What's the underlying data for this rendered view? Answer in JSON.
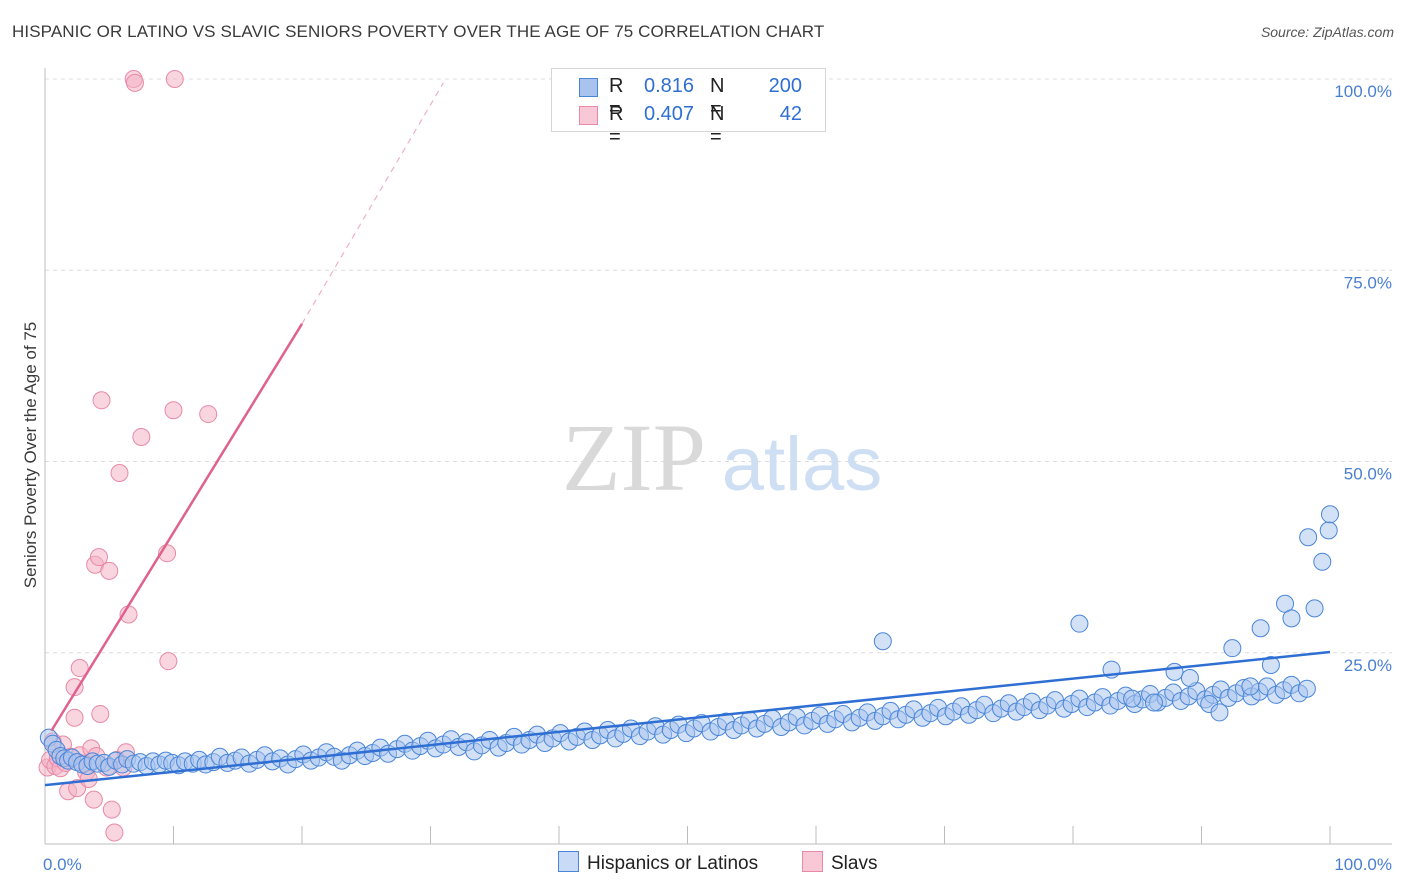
{
  "title": "HISPANIC OR LATINO VS SLAVIC SENIORS POVERTY OVER THE AGE OF 75 CORRELATION CHART",
  "source": "Source: ZipAtlas.com",
  "watermark": {
    "zip": "ZIP",
    "atlas": "atlas"
  },
  "colors": {
    "blue_fill": "#a8c4ee",
    "blue_stroke": "#4a86d8",
    "blue_line": "#2f6fd3",
    "pink_fill": "#f4b3c6",
    "pink_stroke": "#e88aa7",
    "pink_line": "#e0608e",
    "tick_text": "#4a7fd0",
    "grid": "#dcdcdc"
  },
  "legend": {
    "r_label": "R =",
    "n_label": "N =",
    "rows": [
      {
        "series": "Hispanics or Latinos",
        "r": "0.816",
        "n": "200"
      },
      {
        "series": "Slavs",
        "r": "0.407",
        "n": "42"
      }
    ]
  },
  "chart_data": {
    "type": "scatter",
    "title": "HISPANIC OR LATINO VS SLAVIC SENIORS POVERTY OVER THE AGE OF 75 CORRELATION CHART",
    "xlabel": "",
    "ylabel": "Seniors Poverty Over the Age of 75",
    "xlim": [
      0,
      100
    ],
    "ylim": [
      0,
      100
    ],
    "x_tick_labels": [
      "0.0%",
      "100.0%"
    ],
    "y_tick_labels": [
      "25.0%",
      "50.0%",
      "75.0%",
      "100.0%"
    ],
    "y_ticks": [
      25,
      50,
      75,
      100
    ],
    "grid": "horizontal dashed",
    "legend_position": "top-center and bottom",
    "series": [
      {
        "name": "Hispanics or Latinos",
        "trend": {
          "x": [
            0,
            100
          ],
          "y": [
            7.7,
            25.1
          ]
        },
        "points": [
          [
            0.3,
            13.9
          ],
          [
            0.6,
            13.1
          ],
          [
            0.9,
            12.3
          ],
          [
            1.2,
            11.5
          ],
          [
            1.5,
            11.2
          ],
          [
            1.8,
            10.9
          ],
          [
            2.1,
            11.3
          ],
          [
            2.5,
            10.7
          ],
          [
            2.9,
            10.4
          ],
          [
            3.3,
            10.2
          ],
          [
            3.7,
            10.8
          ],
          [
            4.1,
            10.5
          ],
          [
            4.6,
            10.6
          ],
          [
            5.0,
            10.1
          ],
          [
            5.5,
            10.9
          ],
          [
            6.0,
            10.4
          ],
          [
            6.4,
            11.1
          ],
          [
            6.9,
            10.5
          ],
          [
            7.4,
            10.7
          ],
          [
            7.9,
            10.2
          ],
          [
            8.4,
            10.8
          ],
          [
            8.9,
            10.4
          ],
          [
            9.4,
            10.9
          ],
          [
            9.9,
            10.6
          ],
          [
            10.4,
            10.3
          ],
          [
            10.9,
            10.8
          ],
          [
            11.5,
            10.5
          ],
          [
            12.0,
            11.0
          ],
          [
            12.5,
            10.4
          ],
          [
            13.1,
            10.7
          ],
          [
            13.6,
            11.4
          ],
          [
            14.2,
            10.6
          ],
          [
            14.8,
            10.9
          ],
          [
            15.3,
            11.3
          ],
          [
            15.9,
            10.5
          ],
          [
            16.5,
            11.0
          ],
          [
            17.1,
            11.6
          ],
          [
            17.7,
            10.8
          ],
          [
            18.3,
            11.2
          ],
          [
            18.9,
            10.4
          ],
          [
            19.5,
            11.1
          ],
          [
            20.1,
            11.7
          ],
          [
            20.7,
            10.9
          ],
          [
            21.3,
            11.3
          ],
          [
            21.9,
            12.0
          ],
          [
            22.5,
            11.4
          ],
          [
            23.1,
            10.9
          ],
          [
            23.7,
            11.6
          ],
          [
            24.3,
            12.2
          ],
          [
            24.9,
            11.5
          ],
          [
            25.5,
            11.9
          ],
          [
            26.1,
            12.6
          ],
          [
            26.7,
            11.8
          ],
          [
            27.4,
            12.4
          ],
          [
            28.0,
            13.1
          ],
          [
            28.6,
            12.2
          ],
          [
            29.2,
            12.8
          ],
          [
            29.8,
            13.5
          ],
          [
            30.4,
            12.5
          ],
          [
            31.0,
            13.0
          ],
          [
            31.6,
            13.7
          ],
          [
            32.2,
            12.7
          ],
          [
            32.8,
            13.3
          ],
          [
            33.4,
            12.1
          ],
          [
            34.0,
            12.9
          ],
          [
            34.6,
            13.6
          ],
          [
            35.3,
            12.6
          ],
          [
            35.9,
            13.2
          ],
          [
            36.5,
            14.0
          ],
          [
            37.1,
            13.0
          ],
          [
            37.7,
            13.6
          ],
          [
            38.3,
            14.3
          ],
          [
            38.9,
            13.2
          ],
          [
            39.5,
            13.8
          ],
          [
            40.1,
            14.5
          ],
          [
            40.8,
            13.4
          ],
          [
            41.4,
            14.0
          ],
          [
            42.0,
            14.7
          ],
          [
            42.6,
            13.6
          ],
          [
            43.2,
            14.2
          ],
          [
            43.8,
            14.9
          ],
          [
            44.4,
            13.8
          ],
          [
            45.0,
            14.4
          ],
          [
            45.6,
            15.1
          ],
          [
            46.3,
            14.1
          ],
          [
            46.9,
            14.7
          ],
          [
            47.5,
            15.4
          ],
          [
            48.1,
            14.3
          ],
          [
            48.7,
            14.9
          ],
          [
            49.3,
            15.6
          ],
          [
            49.9,
            14.5
          ],
          [
            50.5,
            15.1
          ],
          [
            51.1,
            15.8
          ],
          [
            51.8,
            14.7
          ],
          [
            52.4,
            15.3
          ],
          [
            53.0,
            16.0
          ],
          [
            53.6,
            14.9
          ],
          [
            54.2,
            15.5
          ],
          [
            54.8,
            16.2
          ],
          [
            55.4,
            15.1
          ],
          [
            56.0,
            15.7
          ],
          [
            56.6,
            16.4
          ],
          [
            57.3,
            15.3
          ],
          [
            57.9,
            15.9
          ],
          [
            58.5,
            16.6
          ],
          [
            59.1,
            15.5
          ],
          [
            59.7,
            16.1
          ],
          [
            60.3,
            16.8
          ],
          [
            60.9,
            15.7
          ],
          [
            61.5,
            16.3
          ],
          [
            62.1,
            17.0
          ],
          [
            62.8,
            15.9
          ],
          [
            63.4,
            16.5
          ],
          [
            64.0,
            17.2
          ],
          [
            64.6,
            16.1
          ],
          [
            65.2,
            16.7
          ],
          [
            65.8,
            17.4
          ],
          [
            66.4,
            16.3
          ],
          [
            67.0,
            16.9
          ],
          [
            67.6,
            17.6
          ],
          [
            68.3,
            16.5
          ],
          [
            68.9,
            17.1
          ],
          [
            69.5,
            17.8
          ],
          [
            70.1,
            16.7
          ],
          [
            70.7,
            17.3
          ],
          [
            71.3,
            18.0
          ],
          [
            71.9,
            16.9
          ],
          [
            72.5,
            17.5
          ],
          [
            73.1,
            18.2
          ],
          [
            73.8,
            17.1
          ],
          [
            74.4,
            17.7
          ],
          [
            75.0,
            18.4
          ],
          [
            75.6,
            17.3
          ],
          [
            76.2,
            17.9
          ],
          [
            76.8,
            18.6
          ],
          [
            77.4,
            17.5
          ],
          [
            78.0,
            18.1
          ],
          [
            78.6,
            18.8
          ],
          [
            79.3,
            17.7
          ],
          [
            79.9,
            18.3
          ],
          [
            80.5,
            19.0
          ],
          [
            81.1,
            17.9
          ],
          [
            81.7,
            18.5
          ],
          [
            82.3,
            19.2
          ],
          [
            82.9,
            18.1
          ],
          [
            83.5,
            18.7
          ],
          [
            84.1,
            19.4
          ],
          [
            84.8,
            18.3
          ],
          [
            85.4,
            18.9
          ],
          [
            86.0,
            19.6
          ],
          [
            86.6,
            18.5
          ],
          [
            87.2,
            19.1
          ],
          [
            87.8,
            19.8
          ],
          [
            88.4,
            18.7
          ],
          [
            89.0,
            19.3
          ],
          [
            89.6,
            20.0
          ],
          [
            90.3,
            18.9
          ],
          [
            90.9,
            19.5
          ],
          [
            91.5,
            20.2
          ],
          [
            92.1,
            19.1
          ],
          [
            92.7,
            19.7
          ],
          [
            93.3,
            20.4
          ],
          [
            93.9,
            19.3
          ],
          [
            94.5,
            19.9
          ],
          [
            95.1,
            20.6
          ],
          [
            95.8,
            19.5
          ],
          [
            96.4,
            20.1
          ],
          [
            97.0,
            20.8
          ],
          [
            97.6,
            19.7
          ],
          [
            98.2,
            20.3
          ],
          [
            65.2,
            26.5
          ],
          [
            80.5,
            28.8
          ],
          [
            83.0,
            22.8
          ],
          [
            84.6,
            19.0
          ],
          [
            86.3,
            18.5
          ],
          [
            87.9,
            22.5
          ],
          [
            89.1,
            21.7
          ],
          [
            90.6,
            18.3
          ],
          [
            91.4,
            17.2
          ],
          [
            92.4,
            25.6
          ],
          [
            93.8,
            20.6
          ],
          [
            94.6,
            28.2
          ],
          [
            95.4,
            23.4
          ],
          [
            96.5,
            31.4
          ],
          [
            97.0,
            29.5
          ],
          [
            98.8,
            30.8
          ],
          [
            99.4,
            36.9
          ],
          [
            99.9,
            41.0
          ],
          [
            100.0,
            43.1
          ],
          [
            98.3,
            40.1
          ]
        ]
      },
      {
        "name": "Slavs",
        "trend": {
          "x": [
            0.5,
            20.0
          ],
          "y": [
            14.8,
            68.0
          ]
        },
        "trend_ext": {
          "x": [
            20.0,
            31.0
          ],
          "y": [
            68.0,
            99.5
          ]
        },
        "points": [
          [
            0.2,
            10.0
          ],
          [
            0.4,
            11.0
          ],
          [
            0.6,
            13.4
          ],
          [
            0.8,
            10.2
          ],
          [
            1.0,
            11.2
          ],
          [
            1.2,
            9.9
          ],
          [
            1.4,
            13.0
          ],
          [
            1.6,
            10.6
          ],
          [
            1.8,
            6.9
          ],
          [
            2.0,
            11.4
          ],
          [
            2.3,
            20.5
          ],
          [
            2.3,
            16.5
          ],
          [
            2.5,
            7.3
          ],
          [
            2.7,
            23.0
          ],
          [
            2.7,
            11.6
          ],
          [
            3.0,
            10.5
          ],
          [
            3.2,
            9.4
          ],
          [
            3.4,
            8.5
          ],
          [
            3.6,
            12.5
          ],
          [
            3.8,
            5.8
          ],
          [
            3.9,
            36.5
          ],
          [
            4.0,
            11.5
          ],
          [
            4.2,
            37.5
          ],
          [
            4.3,
            17.0
          ],
          [
            4.4,
            58.0
          ],
          [
            4.8,
            10.0
          ],
          [
            5.0,
            35.7
          ],
          [
            5.2,
            4.5
          ],
          [
            5.4,
            1.5
          ],
          [
            5.6,
            11.0
          ],
          [
            5.8,
            48.5
          ],
          [
            6.1,
            10.0
          ],
          [
            6.3,
            12.0
          ],
          [
            6.5,
            30.0
          ],
          [
            6.9,
            100.0
          ],
          [
            7.0,
            99.5
          ],
          [
            7.5,
            53.2
          ],
          [
            9.5,
            38.0
          ],
          [
            9.6,
            23.9
          ],
          [
            10.0,
            56.7
          ],
          [
            10.1,
            100.0
          ],
          [
            12.7,
            56.2
          ]
        ]
      }
    ]
  }
}
